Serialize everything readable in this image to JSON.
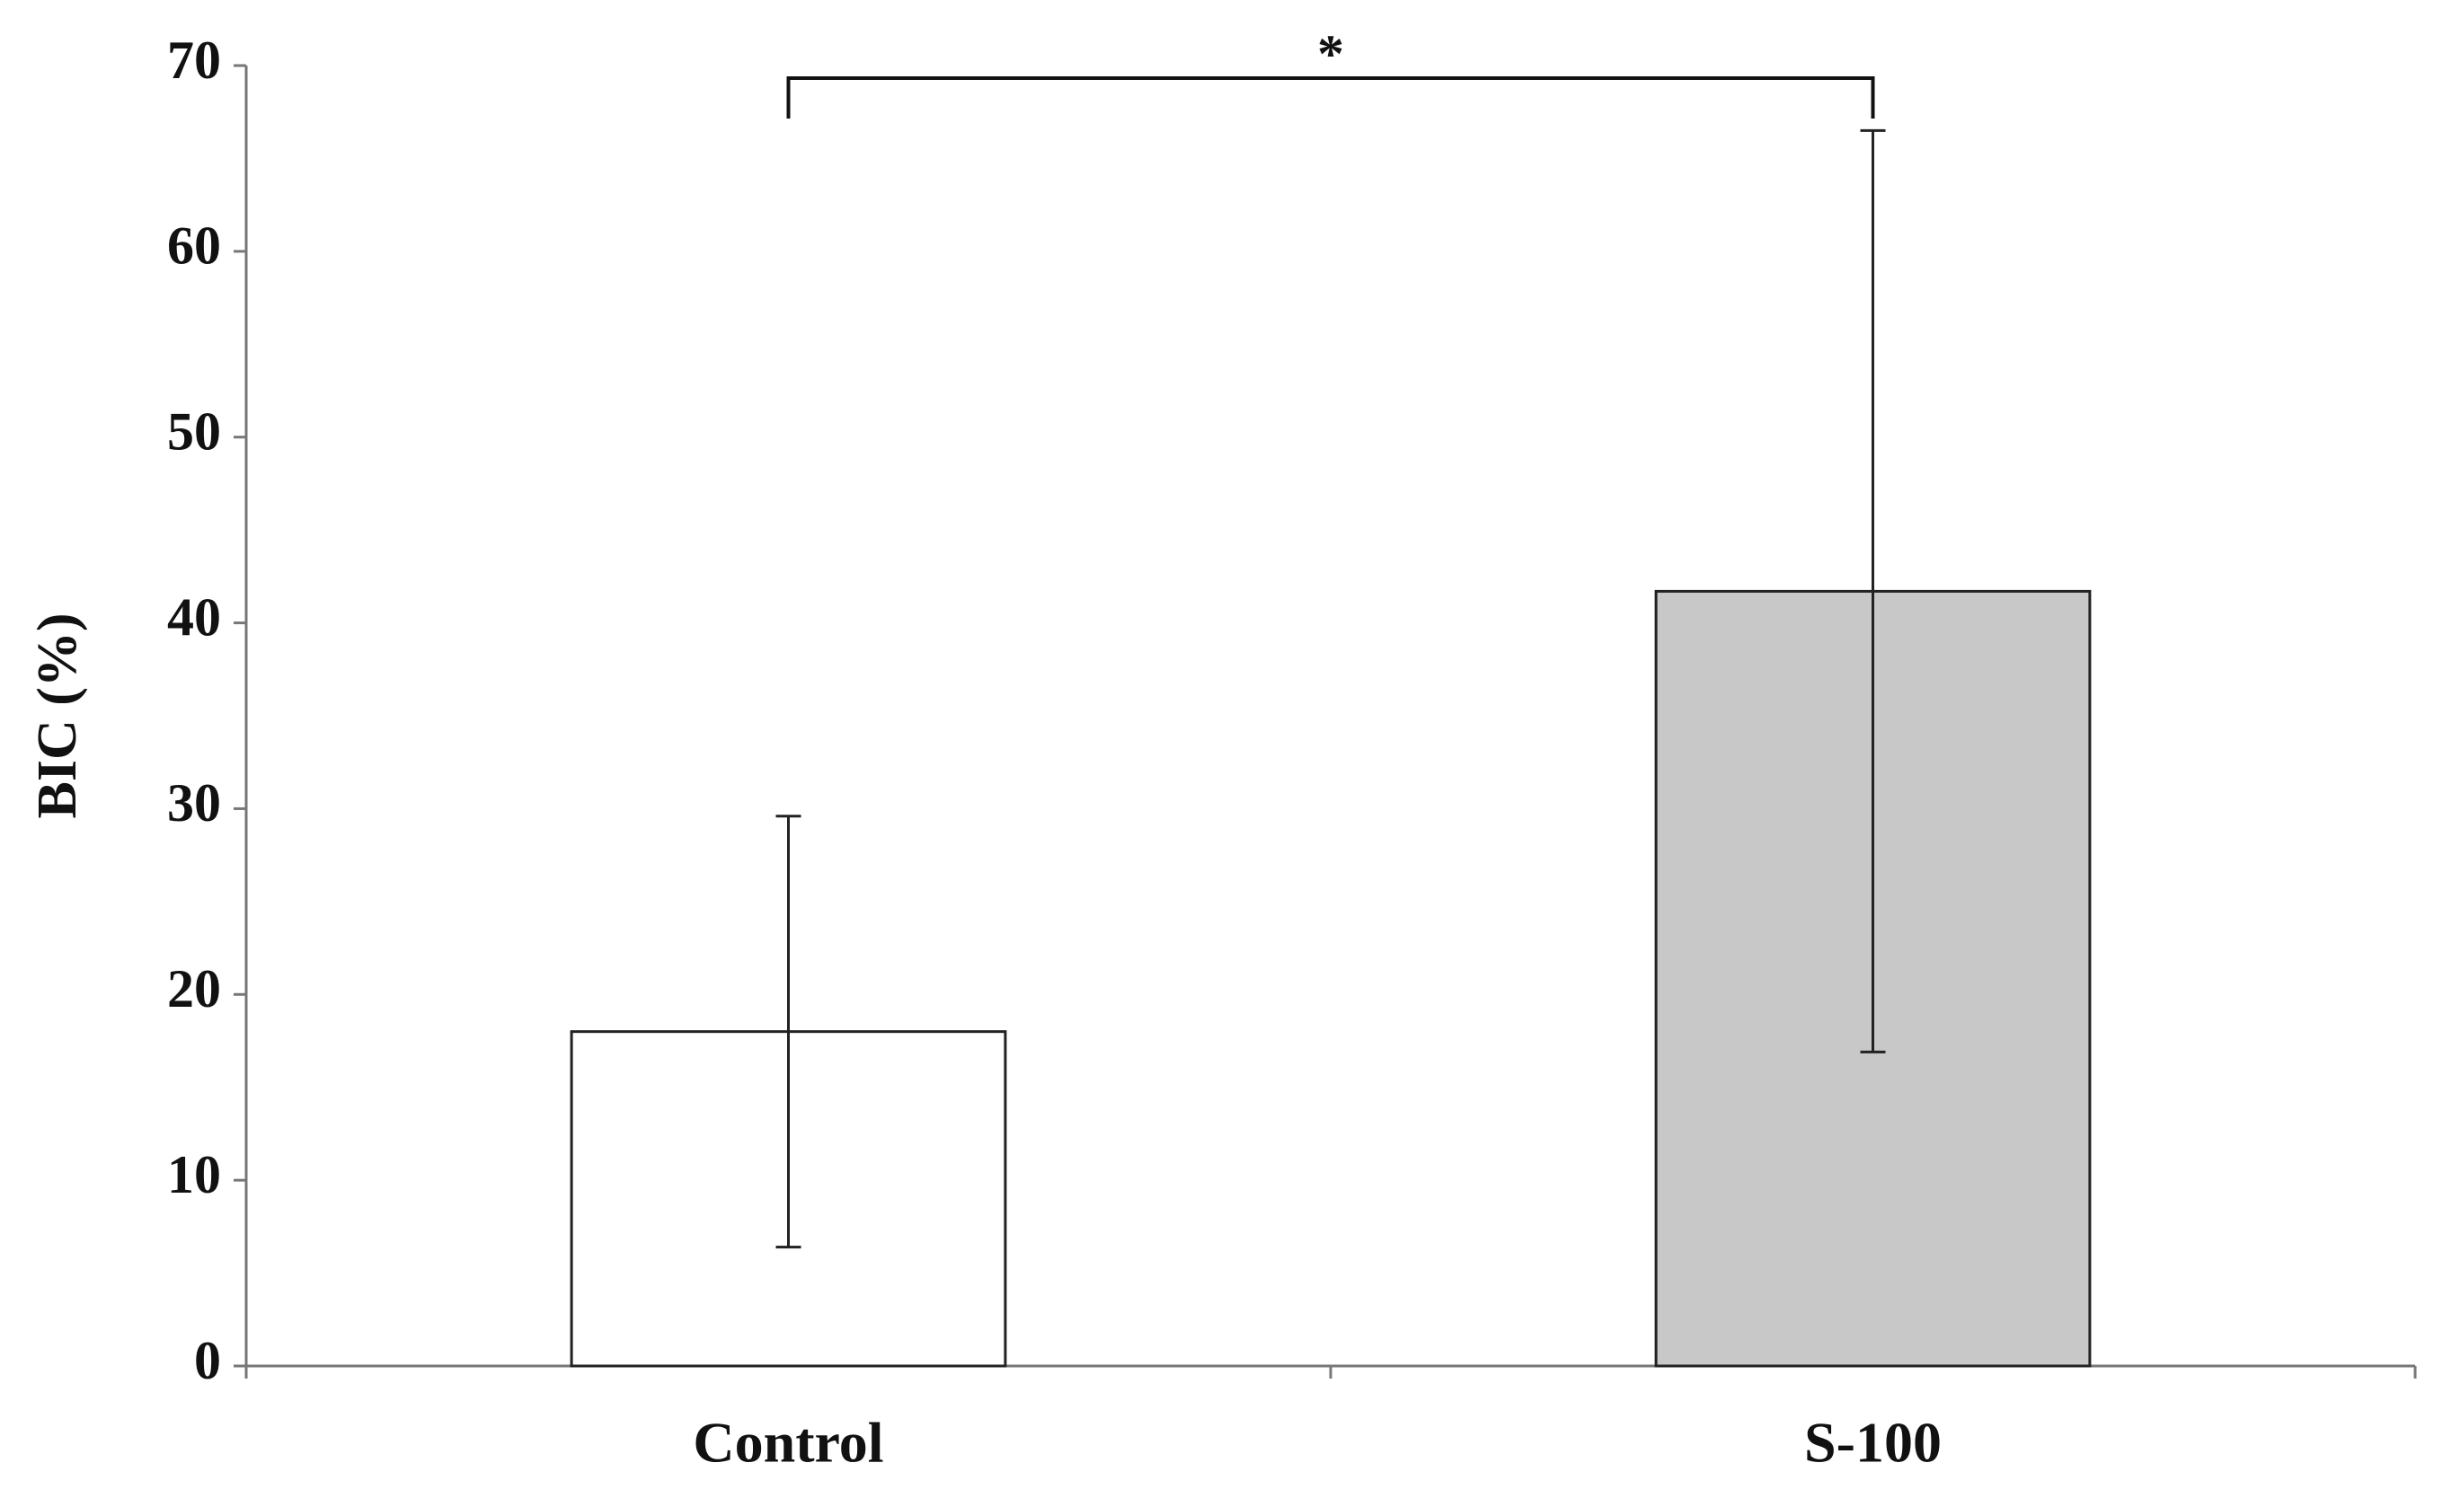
{
  "chart_data": {
    "type": "bar",
    "ylabel": "BIC (%)",
    "categories": [
      "Control",
      "S-100"
    ],
    "values": [
      18,
      41.7
    ],
    "errors": [
      11.6,
      24.8
    ],
    "colors": [
      "#ffffff",
      "#c8c8c8"
    ],
    "ylim": [
      0,
      70
    ],
    "yticks": [
      0,
      10,
      20,
      30,
      40,
      50,
      60,
      70
    ],
    "annotation": "*",
    "grid": false
  }
}
